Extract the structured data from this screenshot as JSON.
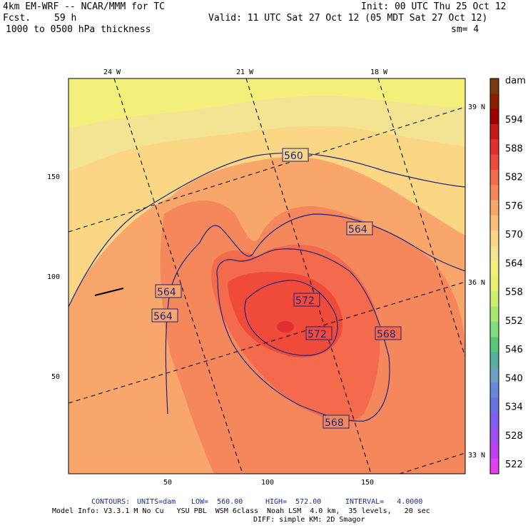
{
  "header": {
    "model": "4km EM-WRF -- NCAR/MMM for TC",
    "init": "Init: 00 UTC Thu 25 Oct 12",
    "fcst_label": "Fcst.",
    "fcst_hours": "59 h",
    "valid": "Valid: 11 UTC Sat 27 Oct 12 (05 MDT Sat 27 Oct 12)",
    "field": "1000 to 0500 hPa thickness",
    "smoothing": "sm= 4"
  },
  "map": {
    "top_lon_labels": [
      "24 W",
      "21 W",
      "18 W"
    ],
    "right_lat_labels": [
      "39 N",
      "36 N",
      "33 N"
    ],
    "y_axis_ticks": [
      "150",
      "100",
      "50"
    ],
    "x_axis_ticks": [
      "50",
      "100",
      "150"
    ],
    "contour_labels": [
      "560",
      "564",
      "564",
      "564",
      "572",
      "572",
      "568",
      "568"
    ]
  },
  "colorbar": {
    "unit": "dam",
    "levels": [
      "594",
      "588",
      "582",
      "576",
      "570",
      "564",
      "558",
      "552",
      "546",
      "540",
      "534",
      "528",
      "522"
    ],
    "colors": [
      "#7a3a10",
      "#8a2000",
      "#a00000",
      "#c81818",
      "#e23030",
      "#f04a3a",
      "#f46a4c",
      "#f5875c",
      "#f8a66b",
      "#fac07a",
      "#fad685",
      "#f3e493",
      "#f2f07a",
      "#e8f070",
      "#cdee70",
      "#a8e870",
      "#80e080",
      "#58c878",
      "#5aae9c",
      "#6fa0c0",
      "#6a86d8",
      "#6a70e0",
      "#8060f0",
      "#a050f0",
      "#c040f0",
      "#e040f0"
    ]
  },
  "footer": {
    "contours_label": "CONTOURS:",
    "units": "UNITS=dam",
    "low": "LOW=  560.00",
    "high": "HIGH=  572.00",
    "interval": "INTERVAL=   4.0000",
    "model_info": "Model Info: V3.3.1 M No Cu   YSU PBL  WSM 6class  Noah LSM  4.0 km,  35 levels,   20 sec",
    "model_info2": "DIFF: simple KM: 2D Smagor"
  },
  "colors": {
    "contour": "#1a237e",
    "plot_bg": "#f8a66b"
  }
}
